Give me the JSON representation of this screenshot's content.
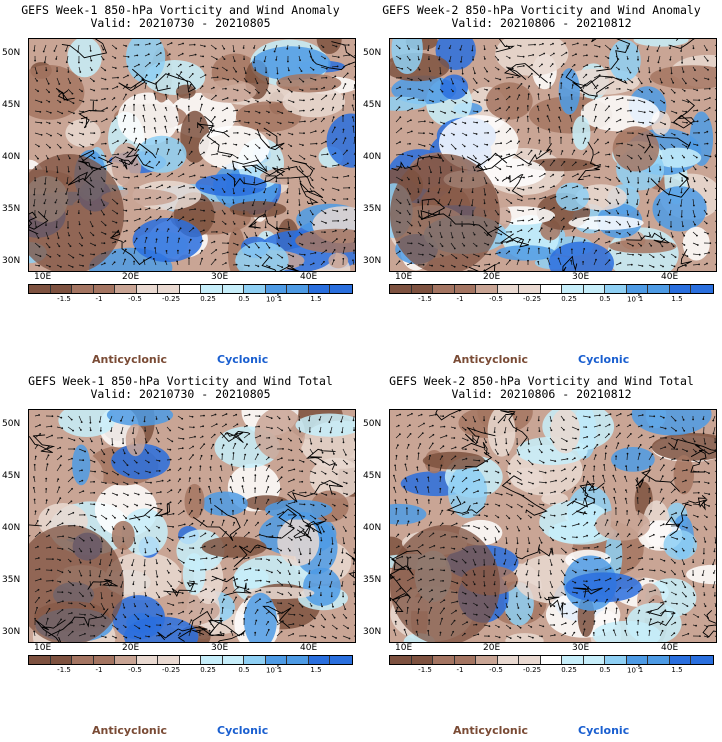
{
  "colors": {
    "anticyclonic_strong": "#7e5240",
    "anticyclonic_mid": "#a47562",
    "anticyclonic_weak": "#c9a595",
    "anticyclonic_faint": "#e9d9d1",
    "neutral": "#ffffff",
    "cyclonic_faint": "#c7eefa",
    "cyclonic_weak": "#8fd0f4",
    "cyclonic_mid": "#4e9be5",
    "cyclonic_strong": "#2a6fde",
    "label_anticyclonic": "#7a4b35",
    "label_cyclonic": "#1a5fd0"
  },
  "axes": {
    "lat_labels": [
      "50N",
      "45N",
      "40N",
      "35N",
      "30N"
    ],
    "lon_labels": [
      "10E",
      "20E",
      "30E",
      "40E"
    ]
  },
  "colorbar": {
    "ticks": [
      "-1.5",
      "-1",
      "-0.5",
      "-0.25",
      "0.25",
      "0.5",
      "1",
      "1.5"
    ],
    "units": "10",
    "units_exp": "-5"
  },
  "legend": {
    "anticyclonic": "Anticyclonic",
    "cyclonic": "Cyclonic"
  },
  "panels": [
    {
      "title": "GEFS Week-1 850-hPa Vorticity and Wind Anomaly",
      "valid": "Valid: 20210730 - 20210805"
    },
    {
      "title": "GEFS Week-2 850-hPa Vorticity and Wind Anomaly",
      "valid": "Valid: 20210806 - 20210812"
    },
    {
      "title": "GEFS Week-1 850-hPa Vorticity and Wind Total",
      "valid": "Valid: 20210730 - 20210805"
    },
    {
      "title": "GEFS Week-2 850-hPa Vorticity and Wind Total",
      "valid": "Valid: 20210806 - 20210812"
    }
  ]
}
